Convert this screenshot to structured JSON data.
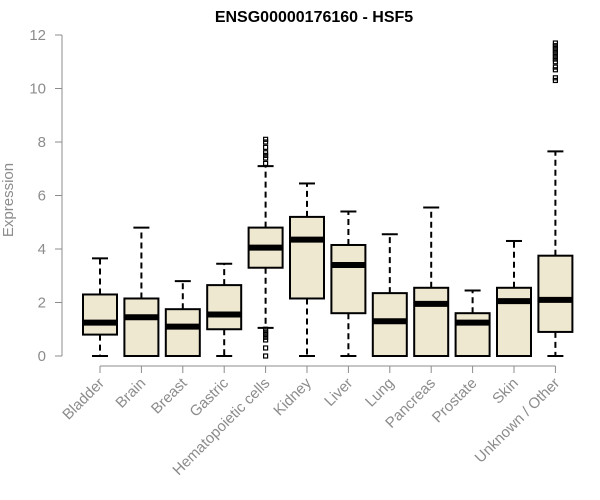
{
  "chart_data": {
    "type": "boxplot",
    "title": "ENSG00000176160 - HSF5",
    "ylabel": "Expression",
    "xlabel": "",
    "ylim": [
      0,
      12
    ],
    "yticks": [
      0,
      2,
      4,
      6,
      8,
      10,
      12
    ],
    "ytick_labels": [
      "0",
      "2",
      "4",
      "6",
      "8",
      "10",
      "12"
    ],
    "grid": false,
    "legend": "none",
    "colors": {
      "box_fill": "#efe8d0",
      "box_stroke": "#000000",
      "axis": "#8c8c8c",
      "outlier": "#000000"
    },
    "categories": [
      "Bladder",
      "Brain",
      "Breast",
      "Gastric",
      "Hematopoietic cells",
      "Kidney",
      "Liver",
      "Lung",
      "Pancreas",
      "Prostate",
      "Skin",
      "Unknown / Other"
    ],
    "boxes": [
      {
        "name": "Bladder",
        "whisker_low": 0.0,
        "q1": 0.8,
        "median": 1.25,
        "q3": 2.3,
        "whisker_high": 3.65,
        "outliers": []
      },
      {
        "name": "Brain",
        "whisker_low": 0.0,
        "q1": 0.0,
        "median": 1.45,
        "q3": 2.15,
        "whisker_high": 4.8,
        "outliers": []
      },
      {
        "name": "Breast",
        "whisker_low": 0.0,
        "q1": 0.0,
        "median": 1.1,
        "q3": 1.75,
        "whisker_high": 2.8,
        "outliers": []
      },
      {
        "name": "Gastric",
        "whisker_low": 0.0,
        "q1": 1.0,
        "median": 1.55,
        "q3": 2.65,
        "whisker_high": 3.45,
        "outliers": []
      },
      {
        "name": "Hematopoietic cells",
        "whisker_low": 1.05,
        "q1": 3.3,
        "median": 4.05,
        "q3": 4.8,
        "whisker_high": 7.1,
        "outliers": [
          0.0,
          0.3,
          0.6,
          0.7,
          0.8,
          0.9,
          1.0,
          7.2,
          7.4,
          7.5,
          7.6,
          7.8,
          8.0,
          8.1
        ]
      },
      {
        "name": "Kidney",
        "whisker_low": 0.0,
        "q1": 2.15,
        "median": 4.35,
        "q3": 5.2,
        "whisker_high": 6.45,
        "outliers": []
      },
      {
        "name": "Liver",
        "whisker_low": 0.0,
        "q1": 1.6,
        "median": 3.4,
        "q3": 4.15,
        "whisker_high": 5.4,
        "outliers": []
      },
      {
        "name": "Lung",
        "whisker_low": 0.0,
        "q1": 0.0,
        "median": 1.3,
        "q3": 2.35,
        "whisker_high": 4.55,
        "outliers": []
      },
      {
        "name": "Pancreas",
        "whisker_low": 0.0,
        "q1": 0.0,
        "median": 1.95,
        "q3": 2.55,
        "whisker_high": 5.55,
        "outliers": []
      },
      {
        "name": "Prostate",
        "whisker_low": 0.0,
        "q1": 0.0,
        "median": 1.25,
        "q3": 1.6,
        "whisker_high": 2.45,
        "outliers": []
      },
      {
        "name": "Skin",
        "whisker_low": 0.0,
        "q1": 0.0,
        "median": 2.05,
        "q3": 2.55,
        "whisker_high": 4.3,
        "outliers": []
      },
      {
        "name": "Unknown / Other",
        "whisker_low": 0.0,
        "q1": 0.9,
        "median": 2.1,
        "q3": 3.75,
        "whisker_high": 7.65,
        "outliers": [
          10.3,
          10.4,
          10.7,
          10.8,
          11.0,
          11.1,
          11.2,
          11.3,
          11.4,
          11.5,
          11.6,
          11.7
        ]
      }
    ]
  }
}
